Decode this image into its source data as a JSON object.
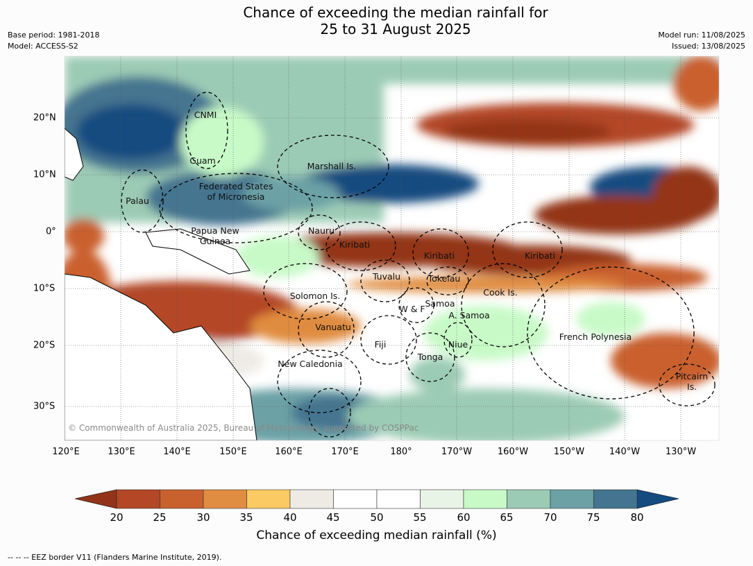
{
  "title": {
    "line1": "Chance of exceeding the median rainfall for",
    "line2": "25 to 31 August 2025"
  },
  "meta_left": {
    "base_period": "Base period: 1981-2018",
    "model": "Model: ACCESS-S2"
  },
  "meta_right": {
    "model_run": "Model run: 11/08/2025",
    "issued": "Issued: 13/08/2025"
  },
  "map": {
    "longitude_labels": [
      "120°E",
      "130°E",
      "140°E",
      "150°E",
      "160°E",
      "170°E",
      "180°",
      "170°W",
      "160°W",
      "150°W",
      "140°W",
      "130°W"
    ],
    "latitude_labels": [
      "20°N",
      "10°N",
      "0°",
      "10°S",
      "20°S",
      "30°S"
    ],
    "regions": {
      "cnmi": "CNMI",
      "guam": "Guam",
      "marshall": "Marshall Is.",
      "micronesia_1": "Federated States",
      "micronesia_2": "of Micronesia",
      "palau": "Palau",
      "png_1": "Papua New",
      "png_2": "Guinea",
      "nauru": "Nauru",
      "kiribati_w": "Kiribati",
      "kiribati_c": "Kiribati",
      "kiribati_e": "Kiribati",
      "tuvalu": "Tuvalu",
      "tokelau": "Tokelau",
      "cook": "Cook Is.",
      "solomon": "Solomon Is.",
      "samoa": "Samoa",
      "wf": "W & F",
      "asamoa": "A. Samoa",
      "vanuatu": "Vanuatu",
      "fiji": "Fiji",
      "niue": "Niue",
      "tonga": "Tonga",
      "fp": "French Polynesia",
      "newcal": "New Caledonia",
      "pitcairn_1": "Pitcairn",
      "pitcairn_2": "Is."
    },
    "colors": {
      "dark_brown": "#933419",
      "brown": "#b34726",
      "orange_dark": "#c9612e",
      "orange": "#e08c41",
      "yellow": "#fcca63",
      "light_grey": "#eeebe5",
      "white": "#ffffff",
      "pale_green": "#e8f5e6",
      "light_green": "#c8fac8",
      "sea_green": "#9ccbb5",
      "teal": "#6ca1a6",
      "steel_blue": "#44748f",
      "dark_blue": "#144c80"
    }
  },
  "copyright": "© Commonwealth of Australia 2025, Bureau of Meteorology, supported by COSPPac",
  "colorbar": {
    "ticks": [
      "20",
      "25",
      "30",
      "35",
      "40",
      "45",
      "50",
      "55",
      "60",
      "65",
      "70",
      "75",
      "80"
    ],
    "colors": [
      "#b34726",
      "#c9612e",
      "#e08c41",
      "#fcca63",
      "#eeebe5",
      "#ffffff",
      "#ffffff",
      "#e8f5e6",
      "#c8fac8",
      "#9ccbb5",
      "#6ca1a6",
      "#44748f"
    ],
    "under_color": "#933419",
    "over_color": "#144c80",
    "title": "Chance of exceeding median rainfall (%)"
  },
  "footnote": "--  --  -- EEZ border V11 (Flanders Marine Institute, 2019)."
}
